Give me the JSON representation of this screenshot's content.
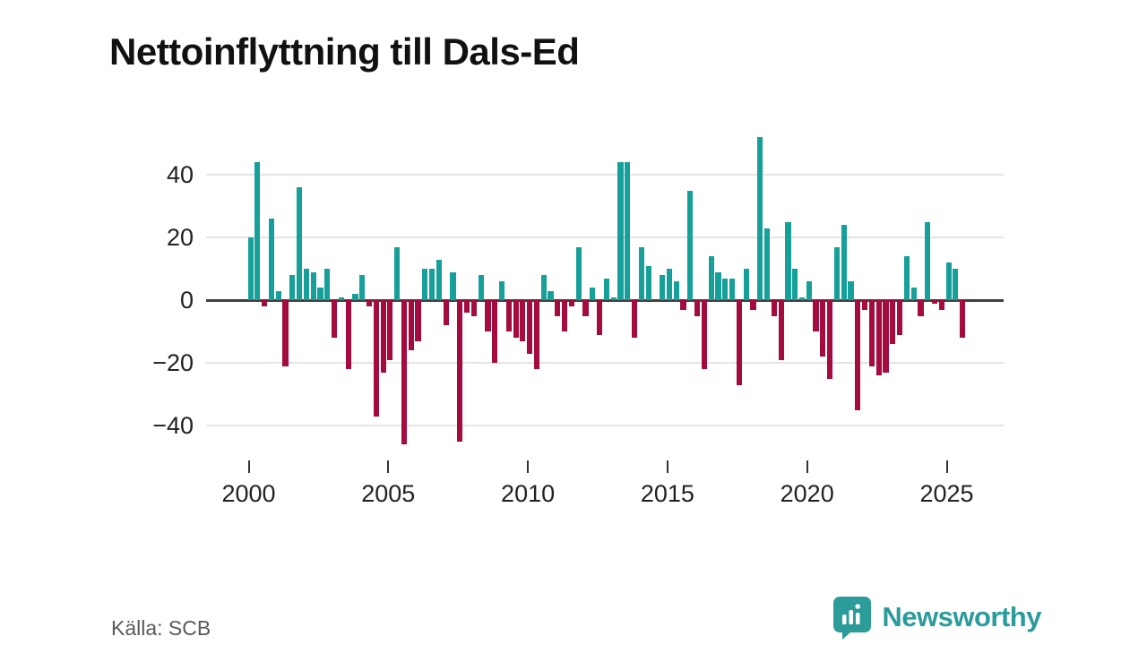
{
  "title": "Nettoinflyttning till Dals-Ed",
  "footer": {
    "source": "Källa: SCB"
  },
  "brand": {
    "name": "Newsworthy",
    "icon": "speech-bubble-bar-chart",
    "color": "#2b9c9a"
  },
  "colors": {
    "positive_bar": "#16a099",
    "negative_bar": "#a40b3e",
    "gridline": "#e4e4e4",
    "zero_axis": "#404040",
    "axis_text": "#222222",
    "title_text": "#111111",
    "source_text": "#595959",
    "background": "#ffffff"
  },
  "chart_data": {
    "type": "bar",
    "title": "Nettoinflyttning till Dals-Ed",
    "x_unit": "quarter",
    "y_tick_labels": [
      "40",
      "20",
      "0",
      "−20",
      "−40"
    ],
    "y_tick_values": [
      40,
      20,
      0,
      -20,
      -40
    ],
    "x_tick_labels": [
      "2000",
      "2005",
      "2010",
      "2015",
      "2020",
      "2025"
    ],
    "ylim": [
      -50,
      56
    ],
    "grid": "horizontal",
    "legend": "none",
    "values": [
      [
        "2000 Q1",
        20
      ],
      [
        "2000 Q2",
        44
      ],
      [
        "2000 Q3",
        -2
      ],
      [
        "2000 Q4",
        26
      ],
      [
        "2001 Q1",
        3
      ],
      [
        "2001 Q2",
        -21
      ],
      [
        "2001 Q3",
        8
      ],
      [
        "2001 Q4",
        36
      ],
      [
        "2002 Q1",
        10
      ],
      [
        "2002 Q2",
        9
      ],
      [
        "2002 Q3",
        4
      ],
      [
        "2002 Q4",
        10
      ],
      [
        "2003 Q1",
        -12
      ],
      [
        "2003 Q2",
        1
      ],
      [
        "2003 Q3",
        -22
      ],
      [
        "2003 Q4",
        2
      ],
      [
        "2004 Q1",
        8
      ],
      [
        "2004 Q2",
        -2
      ],
      [
        "2004 Q3",
        -37
      ],
      [
        "2004 Q4",
        -23
      ],
      [
        "2005 Q1",
        -19
      ],
      [
        "2005 Q2",
        17
      ],
      [
        "2005 Q3",
        -46
      ],
      [
        "2005 Q4",
        -16
      ],
      [
        "2006 Q1",
        -13
      ],
      [
        "2006 Q2",
        10
      ],
      [
        "2006 Q3",
        10
      ],
      [
        "2006 Q4",
        13
      ],
      [
        "2007 Q1",
        -8
      ],
      [
        "2007 Q2",
        9
      ],
      [
        "2007 Q3",
        -45
      ],
      [
        "2007 Q4",
        -4
      ],
      [
        "2008 Q1",
        -5
      ],
      [
        "2008 Q2",
        8
      ],
      [
        "2008 Q3",
        -10
      ],
      [
        "2008 Q4",
        -20
      ],
      [
        "2009 Q1",
        6
      ],
      [
        "2009 Q2",
        -10
      ],
      [
        "2009 Q3",
        -12
      ],
      [
        "2009 Q4",
        -13
      ],
      [
        "2010 Q1",
        -17
      ],
      [
        "2010 Q2",
        -22
      ],
      [
        "2010 Q3",
        8
      ],
      [
        "2010 Q4",
        3
      ],
      [
        "2011 Q1",
        -5
      ],
      [
        "2011 Q2",
        -10
      ],
      [
        "2011 Q3",
        -2
      ],
      [
        "2011 Q4",
        17
      ],
      [
        "2012 Q1",
        -5
      ],
      [
        "2012 Q2",
        4
      ],
      [
        "2012 Q3",
        -11
      ],
      [
        "2012 Q4",
        7
      ],
      [
        "2013 Q1",
        1
      ],
      [
        "2013 Q2",
        44
      ],
      [
        "2013 Q3",
        44
      ],
      [
        "2013 Q4",
        -12
      ],
      [
        "2014 Q1",
        17
      ],
      [
        "2014 Q2",
        11
      ],
      [
        "2014 Q3",
        0
      ],
      [
        "2014 Q4",
        8
      ],
      [
        "2015 Q1",
        10
      ],
      [
        "2015 Q2",
        6
      ],
      [
        "2015 Q3",
        -3
      ],
      [
        "2015 Q4",
        35
      ],
      [
        "2016 Q1",
        -5
      ],
      [
        "2016 Q2",
        -22
      ],
      [
        "2016 Q3",
        14
      ],
      [
        "2016 Q4",
        9
      ],
      [
        "2017 Q1",
        7
      ],
      [
        "2017 Q2",
        7
      ],
      [
        "2017 Q3",
        -27
      ],
      [
        "2017 Q4",
        10
      ],
      [
        "2018 Q1",
        -3
      ],
      [
        "2018 Q2",
        52
      ],
      [
        "2018 Q3",
        23
      ],
      [
        "2018 Q4",
        -5
      ],
      [
        "2019 Q1",
        -19
      ],
      [
        "2019 Q2",
        25
      ],
      [
        "2019 Q3",
        10
      ],
      [
        "2019 Q4",
        1
      ],
      [
        "2020 Q1",
        6
      ],
      [
        "2020 Q2",
        -10
      ],
      [
        "2020 Q3",
        -18
      ],
      [
        "2020 Q4",
        -25
      ],
      [
        "2021 Q1",
        17
      ],
      [
        "2021 Q2",
        24
      ],
      [
        "2021 Q3",
        6
      ],
      [
        "2021 Q4",
        -35
      ],
      [
        "2022 Q1",
        -3
      ],
      [
        "2022 Q2",
        -21
      ],
      [
        "2022 Q3",
        -24
      ],
      [
        "2022 Q4",
        -23
      ],
      [
        "2023 Q1",
        -14
      ],
      [
        "2023 Q2",
        -11
      ],
      [
        "2023 Q3",
        14
      ],
      [
        "2023 Q4",
        4
      ],
      [
        "2024 Q1",
        -5
      ],
      [
        "2024 Q2",
        25
      ],
      [
        "2024 Q3",
        -1
      ],
      [
        "2024 Q4",
        -3
      ],
      [
        "2025 Q1",
        12
      ],
      [
        "2025 Q2",
        10
      ],
      [
        "2025 Q3",
        -12
      ]
    ]
  }
}
